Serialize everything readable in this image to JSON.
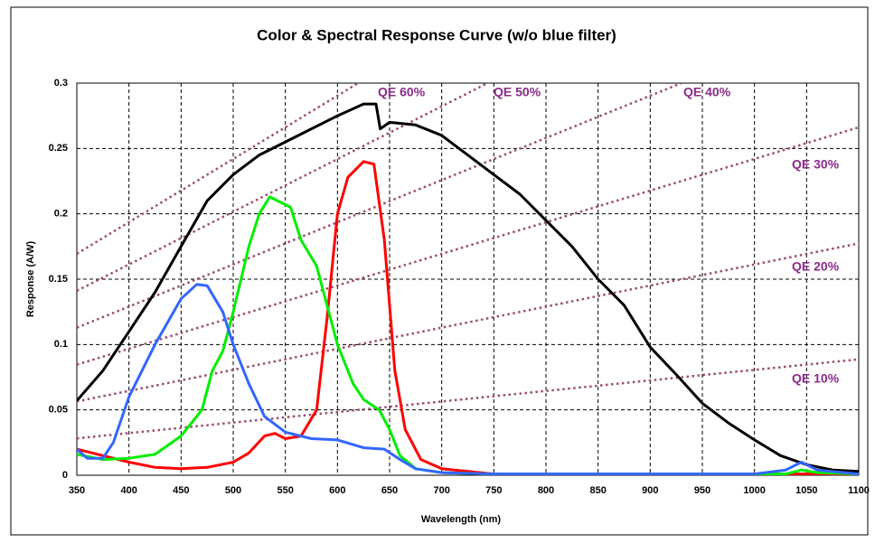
{
  "chart_data": {
    "type": "line",
    "title": "Color & Spectral Response Curve (w/o blue filter)",
    "xlabel": "Wavelength (nm)",
    "ylabel": "Response (A/W)",
    "xlim": [
      350,
      1100
    ],
    "xticks": [
      350,
      400,
      450,
      500,
      550,
      600,
      650,
      700,
      750,
      800,
      850,
      900,
      950,
      1000,
      1050,
      1100
    ],
    "ylim": [
      0,
      0.3
    ],
    "yticks": [
      0,
      0.05,
      0.1,
      0.15,
      0.2,
      0.25,
      0.3
    ],
    "grid": true,
    "series": [
      {
        "color": "#000000",
        "x": [
          350,
          375,
          400,
          425,
          450,
          475,
          500,
          525,
          550,
          575,
          600,
          625,
          637,
          641,
          650,
          675,
          700,
          725,
          750,
          775,
          800,
          825,
          850,
          875,
          900,
          925,
          950,
          975,
          1000,
          1025,
          1050,
          1075,
          1100
        ],
        "values": [
          0.057,
          0.08,
          0.11,
          0.14,
          0.175,
          0.21,
          0.23,
          0.245,
          0.255,
          0.265,
          0.275,
          0.284,
          0.284,
          0.265,
          0.27,
          0.268,
          0.26,
          0.245,
          0.23,
          0.215,
          0.195,
          0.175,
          0.15,
          0.13,
          0.098,
          0.077,
          0.055,
          0.04,
          0.027,
          0.015,
          0.008,
          0.004,
          0.003
        ]
      },
      {
        "color": "#ff0000",
        "x": [
          350,
          375,
          400,
          425,
          450,
          475,
          500,
          515,
          530,
          540,
          550,
          565,
          580,
          590,
          600,
          610,
          625,
          635,
          645,
          655,
          665,
          680,
          700,
          725,
          750,
          800,
          1100
        ],
        "values": [
          0.02,
          0.015,
          0.01,
          0.006,
          0.005,
          0.006,
          0.01,
          0.017,
          0.03,
          0.032,
          0.028,
          0.03,
          0.05,
          0.12,
          0.2,
          0.228,
          0.24,
          0.238,
          0.18,
          0.08,
          0.035,
          0.012,
          0.005,
          0.003,
          0.001,
          0.001,
          0.001
        ]
      },
      {
        "color": "#00ee00",
        "x": [
          350,
          375,
          400,
          425,
          450,
          470,
          480,
          490,
          500,
          515,
          525,
          535,
          555,
          565,
          580,
          600,
          615,
          625,
          640,
          650,
          660,
          675,
          700,
          750,
          1030,
          1045,
          1060,
          1100
        ],
        "values": [
          0.016,
          0.012,
          0.013,
          0.016,
          0.03,
          0.05,
          0.08,
          0.095,
          0.125,
          0.175,
          0.2,
          0.213,
          0.205,
          0.18,
          0.16,
          0.1,
          0.07,
          0.058,
          0.05,
          0.035,
          0.015,
          0.005,
          0.002,
          0.001,
          0.001,
          0.004,
          0.002,
          0.001
        ]
      },
      {
        "color": "#3366ff",
        "x": [
          350,
          360,
          375,
          385,
          400,
          425,
          450,
          465,
          475,
          490,
          500,
          515,
          530,
          550,
          575,
          600,
          625,
          645,
          660,
          675,
          700,
          750,
          1000,
          1030,
          1045,
          1060,
          1100
        ],
        "values": [
          0.02,
          0.013,
          0.013,
          0.025,
          0.06,
          0.1,
          0.135,
          0.146,
          0.145,
          0.125,
          0.1,
          0.07,
          0.045,
          0.033,
          0.028,
          0.027,
          0.021,
          0.02,
          0.012,
          0.005,
          0.002,
          0.001,
          0.001,
          0.004,
          0.01,
          0.004,
          0.001
        ]
      }
    ],
    "reference_lines": [
      {
        "label": "QE 10%",
        "x": [
          350,
          1100
        ],
        "values": [
          0.0282,
          0.0887
        ]
      },
      {
        "label": "QE 20%",
        "x": [
          350,
          1100
        ],
        "values": [
          0.0565,
          0.1774
        ]
      },
      {
        "label": "QE 30%",
        "x": [
          350,
          1100
        ],
        "values": [
          0.0847,
          0.2662
        ]
      },
      {
        "label": "QE 40%",
        "x": [
          350,
          1100
        ],
        "values": [
          0.1129,
          0.3549
        ]
      },
      {
        "label": "QE 50%",
        "x": [
          350,
          1100
        ],
        "values": [
          0.1411,
          0.4436
        ]
      },
      {
        "label": "QE 60%",
        "x": [
          350,
          1100
        ],
        "values": [
          0.1694,
          0.5323
        ]
      }
    ],
    "reference_color": "#9c4d6e",
    "annotation_color": "#8b2a8b"
  }
}
